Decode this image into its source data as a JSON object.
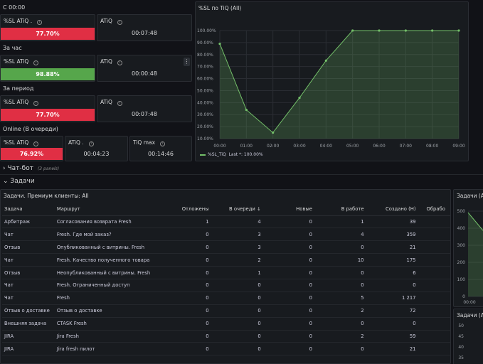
{
  "sections": {
    "s1": "С 00:00",
    "s2": "За час",
    "s3": "За период",
    "s4": "Online (В очереди)"
  },
  "stats": {
    "r1a": {
      "title": "%SL ATiQ .",
      "value": "77.70%",
      "color": "#e02f44"
    },
    "r1b": {
      "title": "ATiQ",
      "value": "00:07:48"
    },
    "r2a": {
      "title": "%SL ATiQ",
      "value": "98.88%",
      "color": "#56a64b"
    },
    "r2b": {
      "title": "ATiQ",
      "value": "00:00:48"
    },
    "r3a": {
      "title": "%SL ATiQ",
      "value": "77.70%",
      "color": "#e02f44"
    },
    "r3b": {
      "title": "ATiQ",
      "value": "00:07:48"
    },
    "r4a": {
      "title": "%SL ATiQ",
      "value": "76.92%",
      "color": "#e02f44"
    },
    "r4b": {
      "title": "ATiQ .",
      "value": "00:04:23"
    },
    "r4c": {
      "title": "TiQ max",
      "value": "00:14:46"
    }
  },
  "chart_panel": {
    "title": "%SL по TiQ (All)",
    "legend": "%SL_TiQ",
    "legend_last": "Last *: 100.00%"
  },
  "chart_data": {
    "type": "area",
    "x": [
      "00:00",
      "01:00",
      "02:00",
      "03:00",
      "04:00",
      "05:00",
      "06:00",
      "07:00",
      "08:00",
      "09:00"
    ],
    "series": [
      {
        "name": "%SL_TiQ",
        "values": [
          89,
          34,
          15,
          44,
          75,
          100,
          100,
          100,
          100,
          100
        ]
      }
    ],
    "y_ticks": [
      "100.00%",
      "90.00%",
      "80.00%",
      "70.00%",
      "60.00%",
      "50.00%",
      "40.00%",
      "30.00%",
      "20.00%",
      "10.00%"
    ],
    "ylim": [
      10,
      100
    ],
    "color": "#73bf69"
  },
  "collapsed": {
    "chat_bot": "Чат-бот",
    "chat_bot_sub": "(3 panels)",
    "tasks": "Задачи"
  },
  "table_panel": {
    "title": "Задачи. Премиум клиенты: All",
    "columns": [
      "Задача",
      "Маршрут",
      "Отложены",
      "В очереди ↓",
      "Новые",
      "В работе",
      "Создано (Н)",
      "Обрабо"
    ],
    "rows": [
      [
        "Арбитраж",
        "Согласования возврата Fresh",
        "1",
        "4",
        "0",
        "1",
        "39"
      ],
      [
        "Чат",
        "Fresh. Где мой заказ?",
        "0",
        "3",
        "0",
        "4",
        "359"
      ],
      [
        "Отзыв",
        "Опубликованный с витрины. Fresh",
        "0",
        "3",
        "0",
        "0",
        "21"
      ],
      [
        "Чат",
        "Fresh. Качество полученного товара",
        "0",
        "2",
        "0",
        "10",
        "175"
      ],
      [
        "Отзыв",
        "Неопубликованный с витрины. Fresh",
        "0",
        "1",
        "0",
        "0",
        "6"
      ],
      [
        "Чат",
        "Fresh. Ограниченный доступ",
        "0",
        "0",
        "0",
        "0",
        "0"
      ],
      [
        "Чат",
        "Fresh",
        "0",
        "0",
        "0",
        "5",
        "1 217"
      ],
      [
        "Отзыв о доставке",
        "Отзыв о доставке",
        "0",
        "0",
        "0",
        "2",
        "72"
      ],
      [
        "Внешняя задача",
        "CTASK Fresh",
        "0",
        "0",
        "0",
        "0",
        "0"
      ],
      [
        "JIRA",
        "Jira Fresh",
        "0",
        "0",
        "0",
        "2",
        "59"
      ],
      [
        "JIRA",
        "Jira fresh пилот",
        "0",
        "0",
        "0",
        "0",
        "21"
      ]
    ]
  },
  "right_panel_1": {
    "title": "Задачи (A",
    "y_ticks": [
      "500",
      "400",
      "300",
      "200",
      "100",
      "0"
    ],
    "x_label": "00:00"
  },
  "right_panel_2": {
    "title": "Задачи (A",
    "y_ticks": [
      "50",
      "45",
      "40",
      "35"
    ]
  }
}
